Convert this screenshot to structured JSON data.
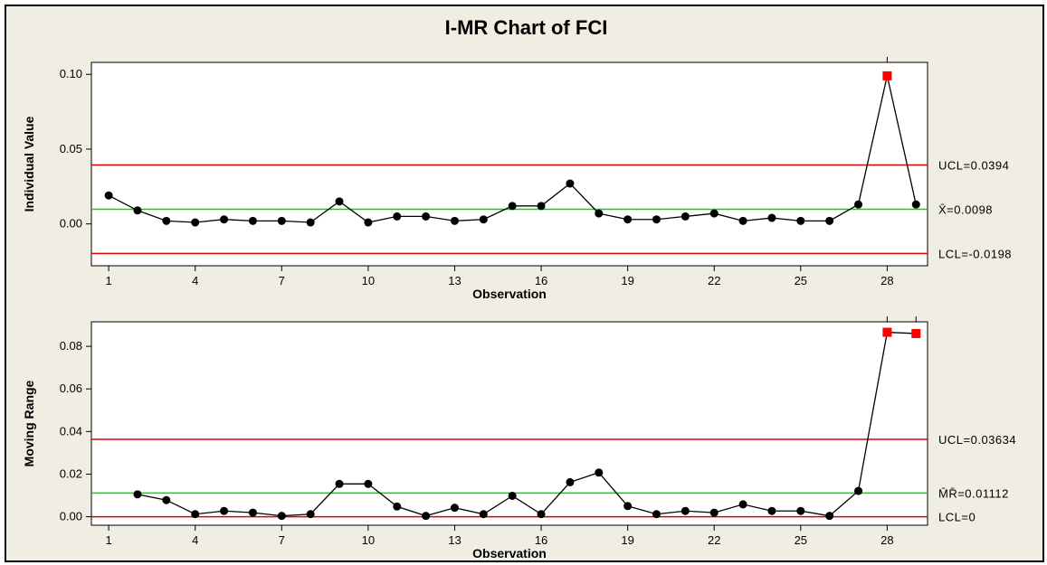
{
  "chart_data": [
    {
      "type": "line",
      "title": "I-MR Chart of FCI",
      "panel": "individuals",
      "xlabel": "Observation",
      "ylabel": "Individual Value",
      "x": [
        1,
        2,
        3,
        4,
        5,
        6,
        7,
        8,
        9,
        10,
        11,
        12,
        13,
        14,
        15,
        16,
        17,
        18,
        19,
        20,
        21,
        22,
        23,
        24,
        25,
        26,
        27,
        28,
        29
      ],
      "values": [
        0.019,
        0.009,
        0.002,
        0.001,
        0.003,
        0.002,
        0.002,
        0.001,
        0.015,
        0.001,
        0.005,
        0.005,
        0.002,
        0.003,
        0.012,
        0.012,
        0.027,
        0.007,
        0.003,
        0.003,
        0.005,
        0.007,
        0.002,
        0.004,
        0.002,
        0.002,
        0.013,
        0.099,
        0.013
      ],
      "out_of_control": [
        28
      ],
      "xticks": [
        1,
        4,
        7,
        10,
        13,
        16,
        19,
        22,
        25,
        28
      ],
      "yticks": [
        "0.00",
        "0.05",
        "0.10"
      ],
      "ylim": [
        -0.028,
        0.108
      ],
      "xlim": [
        0.4,
        29.4
      ],
      "lines": {
        "ucl": {
          "value": 0.0394,
          "label": "UCL=0.0394",
          "color": "#dd0000"
        },
        "center": {
          "value": 0.0098,
          "label": "X̄=0.0098",
          "color": "#00e000"
        },
        "lcl": {
          "value": -0.0198,
          "label": "LCL=-0.0198",
          "color": "#dd0000"
        }
      }
    },
    {
      "type": "line",
      "panel": "moving-range",
      "xlabel": "Observation",
      "ylabel": "Moving Range",
      "x": [
        2,
        3,
        4,
        5,
        6,
        7,
        8,
        9,
        10,
        11,
        12,
        13,
        14,
        15,
        16,
        17,
        18,
        19,
        20,
        21,
        22,
        23,
        24,
        25,
        26,
        27,
        28,
        29
      ],
      "values": [
        0.0105,
        0.0078,
        0.0012,
        0.0027,
        0.0019,
        0.0004,
        0.0012,
        0.0154,
        0.0154,
        0.0048,
        0.0004,
        0.0042,
        0.0012,
        0.0098,
        0.0012,
        0.0162,
        0.0207,
        0.005,
        0.0012,
        0.0027,
        0.0019,
        0.0058,
        0.0027,
        0.0027,
        0.0004,
        0.0121,
        0.0866,
        0.086
      ],
      "out_of_control": [
        28,
        29
      ],
      "xticks": [
        1,
        4,
        7,
        10,
        13,
        16,
        19,
        22,
        25,
        28
      ],
      "yticks": [
        "0.00",
        "0.02",
        "0.04",
        "0.06",
        "0.08"
      ],
      "ylim": [
        -0.004,
        0.0915
      ],
      "xlim": [
        0.4,
        29.4
      ],
      "lines": {
        "ucl": {
          "value": 0.03634,
          "label": "UCL=0.03634",
          "color": "#dd0000"
        },
        "center": {
          "value": 0.01112,
          "label": "M̄R̄=0.01112",
          "color": "#00e000"
        },
        "lcl": {
          "value": 0,
          "label": "LCL=0",
          "color": "#dd0000"
        }
      }
    }
  ],
  "style": {
    "point_color": "#000000",
    "flag_color": "#ff0000",
    "background": "#f0ede3",
    "plot_background": "#ffffff"
  }
}
